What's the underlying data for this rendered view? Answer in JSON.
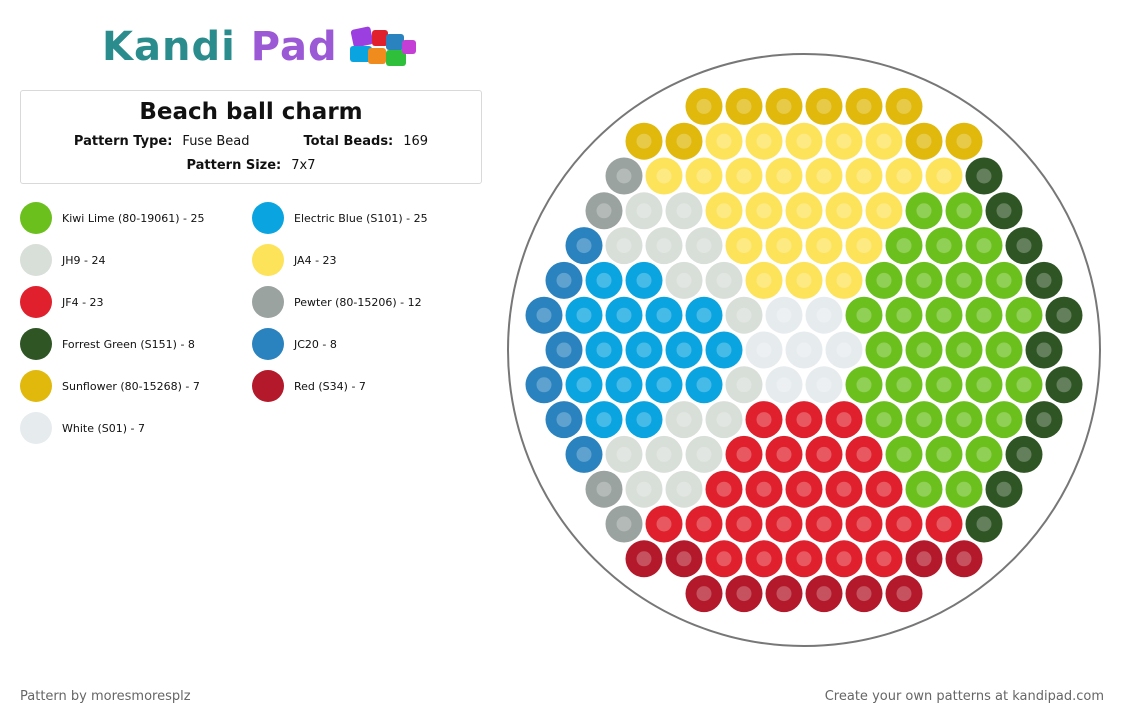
{
  "logo": {
    "part1": "Kandi",
    "part2": "Pad",
    "icon": "bead-cubes-icon"
  },
  "pattern": {
    "title": "Beach ball charm",
    "type_label": "Pattern Type:",
    "type_value": "Fuse Bead",
    "total_label": "Total Beads:",
    "total_value": "169",
    "size_label": "Pattern Size:",
    "size_value": "7x7"
  },
  "legend": [
    {
      "label": "Kiwi Lime (80-19061) - 25",
      "color": "#6cc01e"
    },
    {
      "label": "Electric Blue (S101) - 25",
      "color": "#0aa4e0"
    },
    {
      "label": "JH9 - 24",
      "color": "#d8ded8"
    },
    {
      "label": "JA4 - 23",
      "color": "#fde35a"
    },
    {
      "label": "JF4 - 23",
      "color": "#e0202d"
    },
    {
      "label": "Pewter (80-15206) - 12",
      "color": "#9aa3a0"
    },
    {
      "label": "Forrest Green (S151) - 8",
      "color": "#2f5525"
    },
    {
      "label": "JC20 - 8",
      "color": "#2a83bf"
    },
    {
      "label": "Sunflower (80-15268) - 7",
      "color": "#e0b90c"
    },
    {
      "label": "Red (S34) - 7",
      "color": "#b3192a"
    },
    {
      "label": "White (S01) - 7",
      "color": "#e6ebee"
    }
  ],
  "footer": {
    "credit": "Pattern by moresmoresplz",
    "cta": "Create your own patterns at kandipad.com"
  }
}
